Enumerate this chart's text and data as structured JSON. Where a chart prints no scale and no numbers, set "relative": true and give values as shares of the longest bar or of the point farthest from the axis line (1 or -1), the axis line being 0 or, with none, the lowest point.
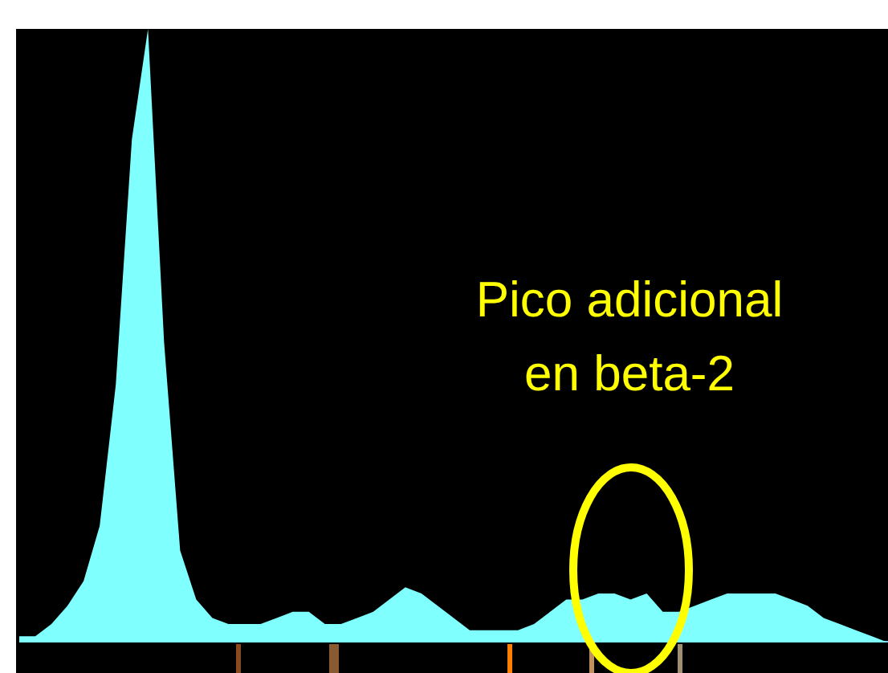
{
  "chart_data": {
    "type": "area",
    "relative": true,
    "color": "#80ffff",
    "categories": [
      null,
      null,
      null,
      null,
      null,
      null,
      null,
      null,
      null,
      null,
      null,
      null,
      null,
      null,
      null,
      null,
      null,
      null,
      null,
      null,
      null,
      null,
      null,
      null,
      null,
      null,
      null,
      null,
      null,
      null,
      null,
      null,
      null,
      null,
      null,
      null,
      null,
      null,
      null,
      null,
      null,
      null,
      null,
      null,
      null,
      null,
      null,
      null,
      null,
      null,
      null,
      null,
      null,
      null,
      null
    ],
    "values": [
      0.01,
      0.01,
      0.03,
      0.06,
      0.1,
      0.19,
      0.42,
      0.82,
      1,
      0.49,
      0.15,
      0.07,
      0.04,
      0.03,
      0.03,
      0.03,
      0.04,
      0.05,
      0.05,
      0.03,
      0.03,
      0.04,
      0.05,
      0.07,
      0.09,
      0.08,
      0.06,
      0.04,
      0.02,
      0.02,
      0.02,
      0.02,
      0.03,
      0.05,
      0.07,
      0.07,
      0.08,
      0.08,
      0.07,
      0.08,
      0.05,
      0.05,
      0.06,
      0.07,
      0.08,
      0.08,
      0.08,
      0.08,
      0.07,
      0.06,
      0.04,
      0.03,
      0.02,
      0.01,
      0
    ],
    "annotations": [
      "Pico adicional\nen beta-2"
    ]
  }
}
